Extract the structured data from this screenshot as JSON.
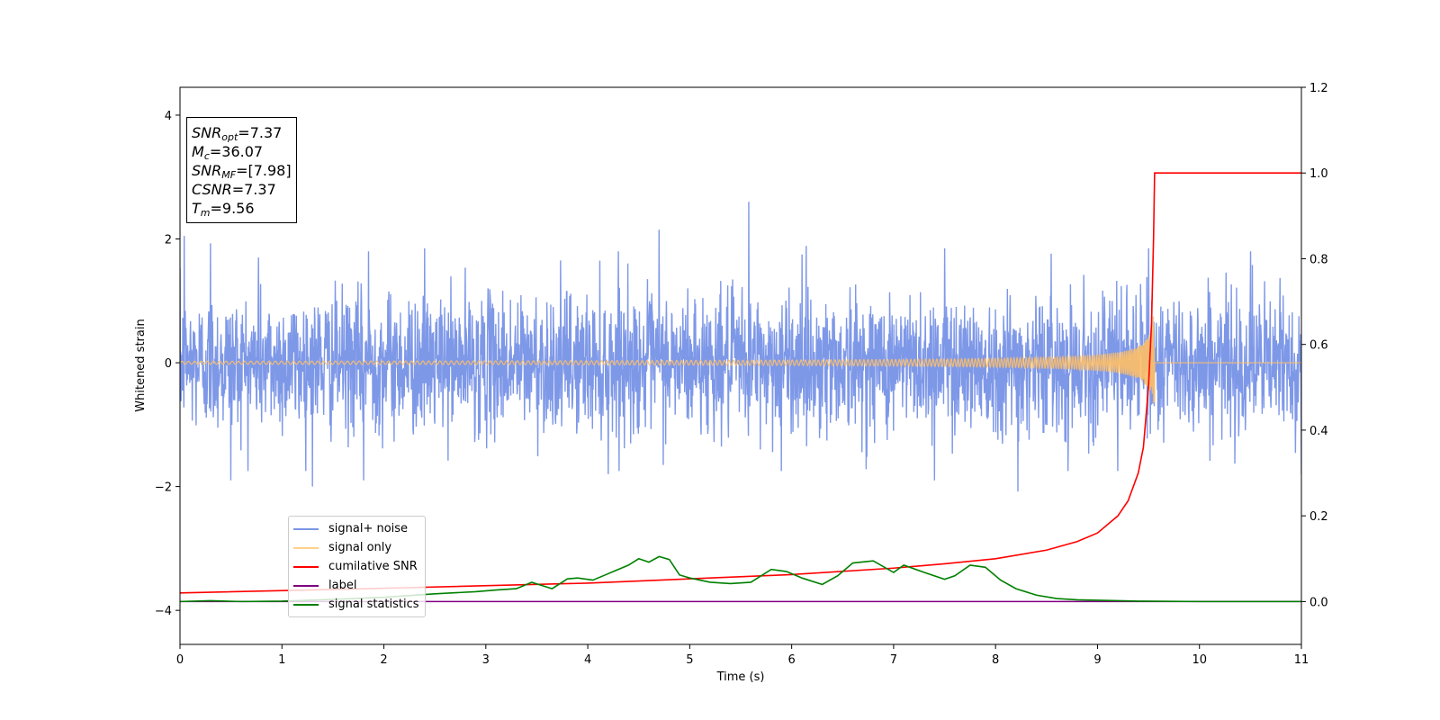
{
  "chart_data": {
    "type": "line",
    "xlabel": "Time (s)",
    "ylabel": "Whitened strain",
    "xlim": [
      0,
      11
    ],
    "ylim_left": [
      -4.55,
      4.45
    ],
    "ylim_right": [
      -0.1,
      1.2
    ],
    "x_ticks": [
      "0",
      "1",
      "2",
      "3",
      "4",
      "5",
      "6",
      "7",
      "8",
      "9",
      "10",
      "11"
    ],
    "y_ticks_left": [
      "4",
      "2",
      "0",
      "−2",
      "−4"
    ],
    "y_ticks_left_values": [
      4,
      2,
      0,
      -2,
      -4
    ],
    "y_ticks_right": [
      "1.2",
      "1.0",
      "0.8",
      "0.6",
      "0.4",
      "0.2",
      "0.0"
    ],
    "y_ticks_right_values": [
      1.2,
      1.0,
      0.8,
      0.6,
      0.4,
      0.2,
      0.0
    ],
    "grid": false,
    "legend_position": "lower-left",
    "stats": {
      "snr_opt": "=7.37",
      "mc": "=36.07",
      "snr_mf": "=[7.98]",
      "csnr": "=7.37",
      "tm": "=9.56"
    },
    "series": [
      {
        "name": "signal+ noise",
        "axis": "left",
        "color": "#7b96e8",
        "description_values": "dense noise roughly between -2.1 and 2.6",
        "peaks": [
          [
            0.04,
            2.05
          ],
          [
            0.3,
            1.93
          ],
          [
            0.77,
            1.7
          ],
          [
            1.3,
            1.7
          ],
          [
            1.85,
            1.8
          ],
          [
            2.4,
            1.85
          ],
          [
            4.3,
            1.8
          ],
          [
            4.7,
            2.15
          ],
          [
            5.58,
            2.6
          ],
          [
            6.1,
            1.75
          ],
          [
            7.5,
            1.85
          ],
          [
            9.5,
            1.85
          ],
          [
            10.5,
            1.8
          ]
        ],
        "troughs": [
          [
            0.5,
            -1.9
          ],
          [
            1.3,
            -2.0
          ],
          [
            1.8,
            -1.9
          ],
          [
            4.2,
            -1.8
          ],
          [
            5.9,
            -1.75
          ],
          [
            7.4,
            -1.9
          ],
          [
            8.22,
            -2.08
          ],
          [
            9.2,
            -1.75
          ],
          [
            11.0,
            -1.8
          ]
        ]
      },
      {
        "name": "signal only",
        "axis": "left",
        "color": "#ffbf66",
        "chirp_merger_time": 9.56,
        "peak_amplitude": 1.0
      },
      {
        "name": "cumilative SNR",
        "axis": "right",
        "color": "#ff0000",
        "points": [
          [
            0,
            0.02
          ],
          [
            2,
            0.031
          ],
          [
            4,
            0.043
          ],
          [
            6,
            0.063
          ],
          [
            7,
            0.078
          ],
          [
            7.5,
            0.088
          ],
          [
            8,
            0.1
          ],
          [
            8.5,
            0.12
          ],
          [
            8.8,
            0.14
          ],
          [
            9.0,
            0.16
          ],
          [
            9.2,
            0.2
          ],
          [
            9.3,
            0.235
          ],
          [
            9.4,
            0.3
          ],
          [
            9.45,
            0.36
          ],
          [
            9.5,
            0.5
          ],
          [
            9.53,
            0.65
          ],
          [
            9.55,
            0.85
          ],
          [
            9.56,
            1.0
          ],
          [
            11,
            1.0
          ]
        ]
      },
      {
        "name": "label",
        "axis": "right",
        "color": "#800080",
        "points": [
          [
            0,
            0.0
          ],
          [
            11,
            0.0
          ]
        ]
      },
      {
        "name": "signal statistics",
        "axis": "right",
        "color": "#008000",
        "points": [
          [
            0,
            0.0
          ],
          [
            0.3,
            0.002
          ],
          [
            0.6,
            0.0
          ],
          [
            1.0,
            0.001
          ],
          [
            1.5,
            0.005
          ],
          [
            2.0,
            0.01
          ],
          [
            2.5,
            0.018
          ],
          [
            2.9,
            0.023
          ],
          [
            3.1,
            0.027
          ],
          [
            3.3,
            0.03
          ],
          [
            3.45,
            0.045
          ],
          [
            3.65,
            0.03
          ],
          [
            3.8,
            0.053
          ],
          [
            3.9,
            0.055
          ],
          [
            4.05,
            0.05
          ],
          [
            4.2,
            0.065
          ],
          [
            4.4,
            0.085
          ],
          [
            4.5,
            0.1
          ],
          [
            4.6,
            0.092
          ],
          [
            4.7,
            0.105
          ],
          [
            4.8,
            0.098
          ],
          [
            4.9,
            0.062
          ],
          [
            5.0,
            0.055
          ],
          [
            5.2,
            0.045
          ],
          [
            5.4,
            0.042
          ],
          [
            5.6,
            0.045
          ],
          [
            5.8,
            0.075
          ],
          [
            5.95,
            0.07
          ],
          [
            6.1,
            0.055
          ],
          [
            6.3,
            0.04
          ],
          [
            6.45,
            0.06
          ],
          [
            6.6,
            0.09
          ],
          [
            6.8,
            0.095
          ],
          [
            7.0,
            0.068
          ],
          [
            7.1,
            0.085
          ],
          [
            7.3,
            0.068
          ],
          [
            7.5,
            0.052
          ],
          [
            7.6,
            0.06
          ],
          [
            7.75,
            0.085
          ],
          [
            7.9,
            0.08
          ],
          [
            8.05,
            0.05
          ],
          [
            8.2,
            0.03
          ],
          [
            8.4,
            0.015
          ],
          [
            8.6,
            0.007
          ],
          [
            8.8,
            0.004
          ],
          [
            9.0,
            0.003
          ],
          [
            9.4,
            0.001
          ],
          [
            10,
            0.0
          ],
          [
            11,
            0.0
          ]
        ]
      }
    ]
  }
}
